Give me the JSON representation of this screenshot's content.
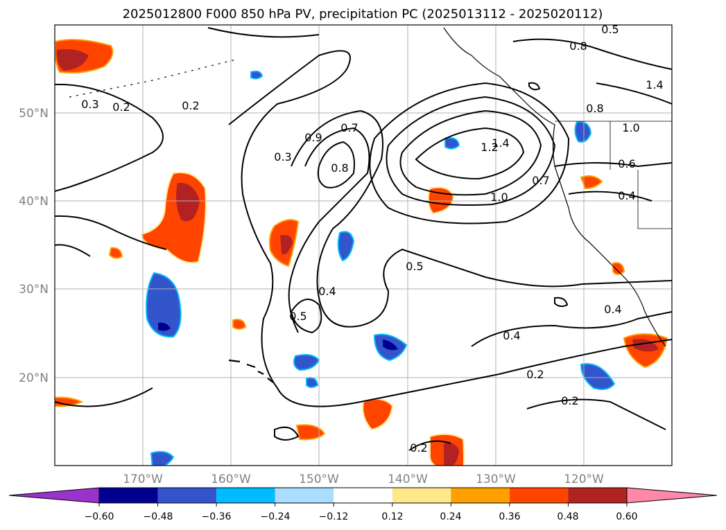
{
  "chart_data": {
    "type": "contour-map",
    "title": "2025012800 F000 850 hPa PV, precipitation PC (2025013112 - 2025020112)",
    "map": {
      "lon_range": [
        -180,
        -110
      ],
      "lat_range": [
        10,
        60
      ],
      "coastlines": true,
      "gridlines": true
    },
    "x_ticks": [
      "170°W",
      "160°W",
      "150°W",
      "140°W",
      "130°W",
      "120°W"
    ],
    "x_tick_values": [
      -170,
      -160,
      -150,
      -140,
      -130,
      -120
    ],
    "y_ticks": [
      "20°N",
      "30°N",
      "40°N",
      "50°N"
    ],
    "y_tick_values": [
      20,
      30,
      40,
      50
    ],
    "contour_labels": [
      "0.2",
      "0.3",
      "0.2",
      "0.7",
      "0.3",
      "0.9",
      "0.8",
      "1.2",
      "1.4",
      "1.0",
      "0.7",
      "0.8",
      "1.0",
      "0.6",
      "0.4",
      "0.5",
      "0.4",
      "0.5",
      "0.4",
      "0.2",
      "0.2",
      "0.2",
      "0.4",
      "0.8",
      "0.5",
      "1.4"
    ],
    "colorbar": {
      "ticks": [
        "−0.60",
        "−0.48",
        "−0.36",
        "−0.24",
        "−0.12",
        "0.12",
        "0.24",
        "0.36",
        "0.48",
        "0.60"
      ],
      "levels": [
        -0.6,
        -0.48,
        -0.36,
        -0.24,
        -0.12,
        0.12,
        0.24,
        0.36,
        0.48,
        0.6
      ],
      "colors": [
        "#9933cc",
        "#000090",
        "#3355cc",
        "#00bbff",
        "#aaddff",
        "#ffffff",
        "#ffe88a",
        "#ffa000",
        "#ff4400",
        "#b22222",
        "#ff88aa"
      ],
      "extend": "both"
    }
  }
}
